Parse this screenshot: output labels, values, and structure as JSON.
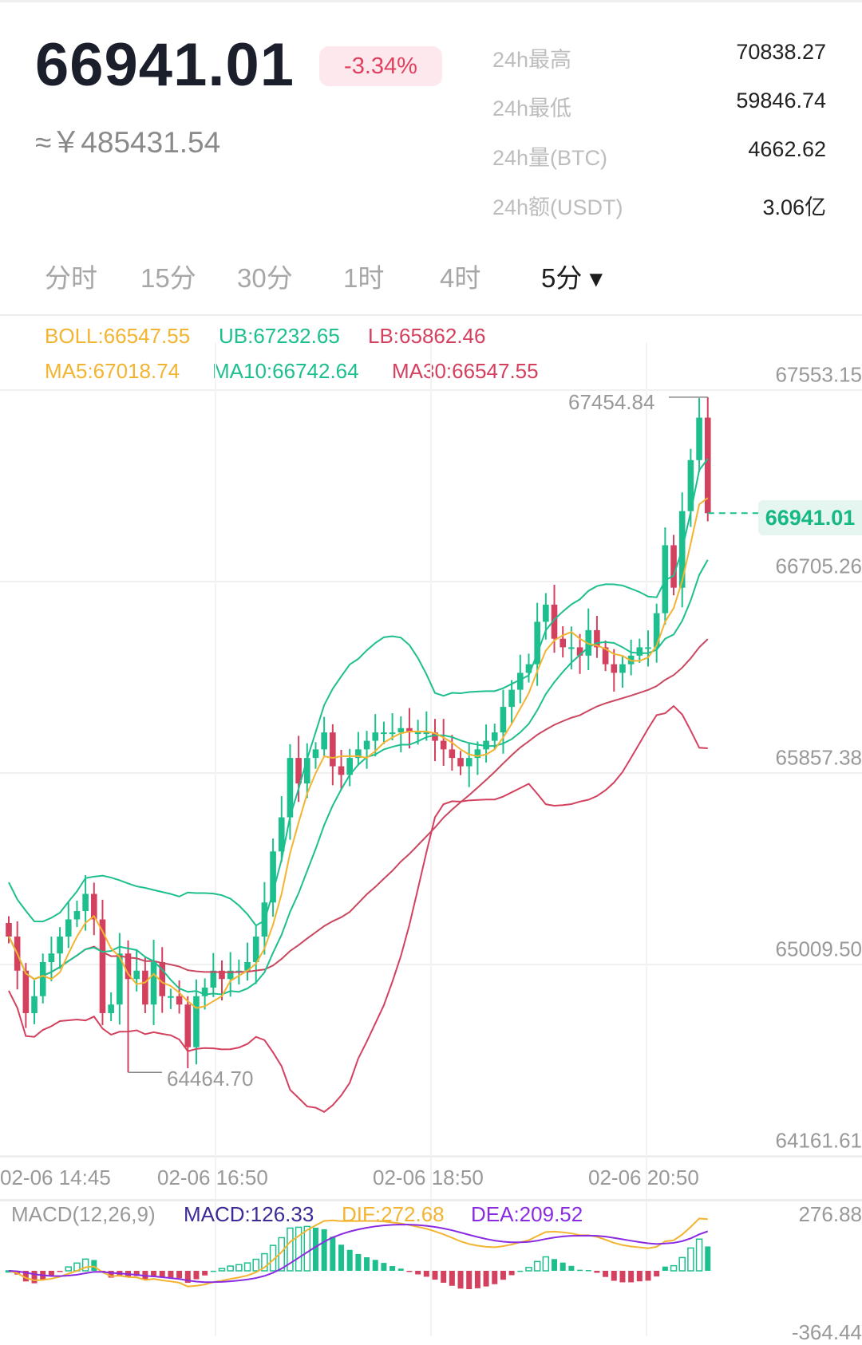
{
  "header": {
    "last_price": "66941.01",
    "change_pct": "-3.34%",
    "cny_price": "≈￥485431.54",
    "stats": [
      {
        "label": "24h最高",
        "value": "70838.27"
      },
      {
        "label": "24h最低",
        "value": "59846.74"
      },
      {
        "label": "24h量(BTC)",
        "value": "4662.62"
      },
      {
        "label": "24h额(USDT)",
        "value": "3.06亿"
      }
    ]
  },
  "tabs": [
    {
      "label": "分时"
    },
    {
      "label": "15分"
    },
    {
      "label": "30分"
    },
    {
      "label": "1时"
    },
    {
      "label": "4时"
    },
    {
      "label": "5分 ▾",
      "active": true
    }
  ],
  "indicators": {
    "boll": "BOLL:66547.55",
    "ub": "UB:67232.65",
    "lb": "LB:65862.46",
    "ma5": "MA5:67018.74",
    "ma10": "MA10:66742.64",
    "ma30": "MA30:66547.55"
  },
  "colors": {
    "up": "#1dbf8e",
    "down": "#d4415f",
    "ma5": "#f2b431",
    "ma10": "#1dbf8e",
    "ma30": "#c9475f",
    "dif": "#f2b431",
    "dea": "#8a2be2",
    "macd": "#3b2b97"
  },
  "chart_data": {
    "type": "candlestick",
    "interval": "5分",
    "y_ticks": [
      "67553.15",
      "66705.26",
      "65857.38",
      "65009.50",
      "64161.61"
    ],
    "ylim": [
      64161.61,
      67553.15
    ],
    "x_ticks": [
      "02-06 14:45",
      "02-06 16:50",
      "02-06 18:50",
      "02-06 20:50"
    ],
    "high_marker": "67454.84",
    "low_marker": "64464.70",
    "current_price_tag": "66941.01",
    "closes": [
      65066,
      64915,
      64727,
      64802,
      64953,
      64991,
      65066,
      65142,
      65179,
      65255,
      65142,
      64727,
      64765,
      64991,
      64878,
      64915,
      64765,
      64953,
      64802,
      64802,
      64765,
      64576,
      64802,
      64840,
      64915,
      64878,
      64915,
      64915,
      64953,
      65066,
      65217,
      65443,
      65594,
      65857,
      65744,
      65857,
      65895,
      65970,
      65820,
      65782,
      65857,
      65895,
      65933,
      65970,
      65970,
      65970,
      65989,
      65970,
      65970,
      65970,
      65933,
      65895,
      65857,
      65820,
      65857,
      65895,
      65933,
      65970,
      66083,
      66159,
      66234,
      66272,
      66460,
      66536,
      66385,
      66347,
      66347,
      66310,
      66423,
      66347,
      66272,
      66234,
      66272,
      66310,
      66347,
      66347,
      66498,
      66799,
      66611,
      66950,
      67176,
      67364,
      66941
    ]
  },
  "macd": {
    "label": "MACD(12,26,9)",
    "macd": "MACD:126.33",
    "dif": "DIF:272.68",
    "dea": "DEA:209.52",
    "y_max": "276.88",
    "y_min": "-364.44"
  }
}
